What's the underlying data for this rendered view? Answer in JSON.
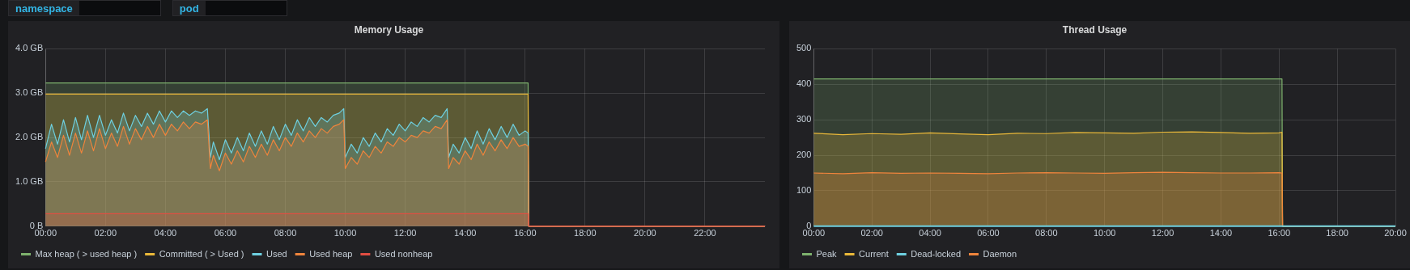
{
  "chart_data": [
    {
      "type": "other",
      "annotations": [
        "namespace",
        "pod"
      ]
    },
    {
      "type": "area",
      "title": "Memory Usage",
      "xlim": [
        0,
        24
      ],
      "ylim": [
        0,
        4
      ],
      "xticks": [
        {
          "value": 0,
          "label": "00:00"
        },
        {
          "value": 2,
          "label": "02:00"
        },
        {
          "value": 4,
          "label": "04:00"
        },
        {
          "value": 6,
          "label": "06:00"
        },
        {
          "value": 8,
          "label": "08:00"
        },
        {
          "value": 10,
          "label": "10:00"
        },
        {
          "value": 12,
          "label": "12:00"
        },
        {
          "value": 14,
          "label": "14:00"
        },
        {
          "value": 16,
          "label": "16:00"
        },
        {
          "value": 18,
          "label": "18:00"
        },
        {
          "value": 20,
          "label": "20:00"
        },
        {
          "value": 22,
          "label": "22:00"
        }
      ],
      "yticks": [
        {
          "value": 0,
          "label": "0 B"
        },
        {
          "value": 1,
          "label": "1.0 GB"
        },
        {
          "value": 2,
          "label": "2.0 GB"
        },
        {
          "value": 3,
          "label": "3.0 GB"
        },
        {
          "value": 4,
          "label": "4.0 GB"
        }
      ],
      "grid": true,
      "legend": "bottom",
      "marker": "none",
      "line_style": "solid",
      "series": [
        {
          "name": "Max heap ( > used heap )",
          "color": "#7eb26d",
          "x": [
            0,
            16.1,
            16.12,
            24
          ],
          "values": [
            3.23,
            3.23,
            0,
            0
          ]
        },
        {
          "name": "Committed ( > Used )",
          "color": "#eab839",
          "x": [
            0,
            16.1,
            16.12,
            24
          ],
          "values": [
            2.98,
            2.98,
            0,
            0
          ]
        },
        {
          "name": "Used",
          "color": "#6ed0e0",
          "x": [
            0,
            0.2,
            0.4,
            0.6,
            0.8,
            1,
            1.2,
            1.4,
            1.6,
            1.8,
            2,
            2.2,
            2.4,
            2.6,
            2.8,
            3,
            3.2,
            3.4,
            3.6,
            3.8,
            4,
            4.2,
            4.4,
            4.6,
            4.8,
            5,
            5.2,
            5.4,
            5.5,
            5.6,
            5.8,
            6,
            6.2,
            6.4,
            6.6,
            6.8,
            7,
            7.2,
            7.4,
            7.6,
            7.8,
            8,
            8.2,
            8.4,
            8.6,
            8.8,
            9,
            9.2,
            9.4,
            9.6,
            9.8,
            9.95,
            10,
            10.2,
            10.4,
            10.6,
            10.8,
            11,
            11.2,
            11.4,
            11.6,
            11.8,
            12,
            12.2,
            12.4,
            12.6,
            12.8,
            13,
            13.2,
            13.4,
            13.45,
            13.6,
            13.8,
            14,
            14.2,
            14.4,
            14.6,
            14.8,
            15,
            15.2,
            15.4,
            15.6,
            15.8,
            16,
            16.1,
            16.12,
            24
          ],
          "values": [
            1.75,
            2.3,
            1.85,
            2.4,
            1.9,
            2.45,
            1.95,
            2.5,
            2.0,
            2.5,
            2.05,
            2.4,
            2.1,
            2.55,
            2.15,
            2.5,
            2.25,
            2.55,
            2.3,
            2.6,
            2.35,
            2.6,
            2.45,
            2.6,
            2.5,
            2.6,
            2.55,
            2.65,
            1.55,
            1.9,
            1.5,
            1.95,
            1.65,
            2.0,
            1.7,
            2.1,
            1.8,
            2.15,
            1.85,
            2.25,
            1.95,
            2.3,
            2.05,
            2.4,
            2.15,
            2.45,
            2.25,
            2.45,
            2.35,
            2.5,
            2.55,
            2.65,
            1.55,
            1.85,
            1.65,
            2.0,
            1.8,
            2.1,
            1.9,
            2.2,
            2.05,
            2.3,
            2.15,
            2.35,
            2.25,
            2.45,
            2.35,
            2.5,
            2.45,
            2.65,
            1.55,
            1.85,
            1.65,
            2.0,
            1.75,
            2.15,
            1.85,
            2.2,
            1.95,
            2.25,
            2.0,
            2.3,
            2.05,
            2.15,
            2.1,
            0,
            0
          ]
        },
        {
          "name": "Used heap",
          "color": "#ef843c",
          "x": [
            0,
            0.2,
            0.4,
            0.6,
            0.8,
            1,
            1.2,
            1.4,
            1.6,
            1.8,
            2,
            2.2,
            2.4,
            2.6,
            2.8,
            3,
            3.2,
            3.4,
            3.6,
            3.8,
            4,
            4.2,
            4.4,
            4.6,
            4.8,
            5,
            5.2,
            5.4,
            5.5,
            5.6,
            5.8,
            6,
            6.2,
            6.4,
            6.6,
            6.8,
            7,
            7.2,
            7.4,
            7.6,
            7.8,
            8,
            8.2,
            8.4,
            8.6,
            8.8,
            9,
            9.2,
            9.4,
            9.6,
            9.8,
            9.95,
            10,
            10.2,
            10.4,
            10.6,
            10.8,
            11,
            11.2,
            11.4,
            11.6,
            11.8,
            12,
            12.2,
            12.4,
            12.6,
            12.8,
            13,
            13.2,
            13.4,
            13.45,
            13.6,
            13.8,
            14,
            14.2,
            14.4,
            14.6,
            14.8,
            15,
            15.2,
            15.4,
            15.6,
            15.8,
            16,
            16.1,
            16.12,
            24
          ],
          "values": [
            1.45,
            1.9,
            1.55,
            2.05,
            1.6,
            2.1,
            1.65,
            2.15,
            1.7,
            2.2,
            1.75,
            2.1,
            1.8,
            2.25,
            1.85,
            2.2,
            1.95,
            2.25,
            2.0,
            2.3,
            2.05,
            2.3,
            2.15,
            2.35,
            2.2,
            2.35,
            2.3,
            2.4,
            1.3,
            1.6,
            1.25,
            1.65,
            1.4,
            1.7,
            1.45,
            1.8,
            1.55,
            1.85,
            1.6,
            1.95,
            1.7,
            2.0,
            1.8,
            2.1,
            1.9,
            2.15,
            2.0,
            2.2,
            2.1,
            2.25,
            2.3,
            2.4,
            1.3,
            1.55,
            1.4,
            1.7,
            1.55,
            1.8,
            1.65,
            1.9,
            1.8,
            2.0,
            1.9,
            2.05,
            2.0,
            2.15,
            2.1,
            2.25,
            2.2,
            2.4,
            1.3,
            1.55,
            1.4,
            1.7,
            1.5,
            1.85,
            1.6,
            1.9,
            1.7,
            1.95,
            1.75,
            2.0,
            1.8,
            1.85,
            1.8,
            0,
            0
          ]
        },
        {
          "name": "Used nonheap",
          "color": "#e24d42",
          "x": [
            0,
            16.1,
            16.12,
            24
          ],
          "values": [
            0.28,
            0.28,
            0,
            0
          ]
        }
      ]
    },
    {
      "type": "area",
      "title": "Thread Usage",
      "xlim": [
        0,
        20
      ],
      "ylim": [
        0,
        500
      ],
      "xticks": [
        {
          "value": 0,
          "label": "00:00"
        },
        {
          "value": 2,
          "label": "02:00"
        },
        {
          "value": 4,
          "label": "04:00"
        },
        {
          "value": 6,
          "label": "06:00"
        },
        {
          "value": 8,
          "label": "08:00"
        },
        {
          "value": 10,
          "label": "10:00"
        },
        {
          "value": 12,
          "label": "12:00"
        },
        {
          "value": 14,
          "label": "14:00"
        },
        {
          "value": 16,
          "label": "16:00"
        },
        {
          "value": 18,
          "label": "18:00"
        },
        {
          "value": 20,
          "label": "20:00"
        }
      ],
      "yticks": [
        0,
        100,
        200,
        300,
        400,
        500
      ],
      "grid": true,
      "legend": "bottom",
      "marker": "none",
      "line_style": "solid",
      "series": [
        {
          "name": "Peak",
          "color": "#7eb26d",
          "x": [
            0,
            16.1,
            16.12,
            20
          ],
          "values": [
            415,
            415,
            0,
            0
          ]
        },
        {
          "name": "Current",
          "color": "#eab839",
          "x": [
            0,
            1,
            2,
            3,
            4,
            5,
            6,
            7,
            8,
            9,
            10,
            11,
            12,
            13,
            14,
            15,
            16,
            16.1,
            16.12,
            20
          ],
          "values": [
            262,
            258,
            261,
            259,
            263,
            260,
            258,
            262,
            261,
            264,
            263,
            262,
            265,
            266,
            264,
            262,
            263,
            265,
            0,
            0
          ]
        },
        {
          "name": "Dead-locked",
          "type": "line",
          "color": "#6ed0e0",
          "x": [
            0,
            20
          ],
          "values": [
            0,
            0
          ]
        },
        {
          "name": "Daemon",
          "color": "#ef843c",
          "x": [
            0,
            1,
            2,
            3,
            4,
            5,
            6,
            7,
            8,
            9,
            10,
            11,
            12,
            13,
            14,
            15,
            16,
            16.1,
            16.12,
            20
          ],
          "values": [
            150,
            148,
            151,
            149,
            150,
            149,
            148,
            150,
            151,
            150,
            149,
            151,
            152,
            151,
            150,
            150,
            151,
            150,
            0,
            0
          ]
        }
      ]
    }
  ]
}
